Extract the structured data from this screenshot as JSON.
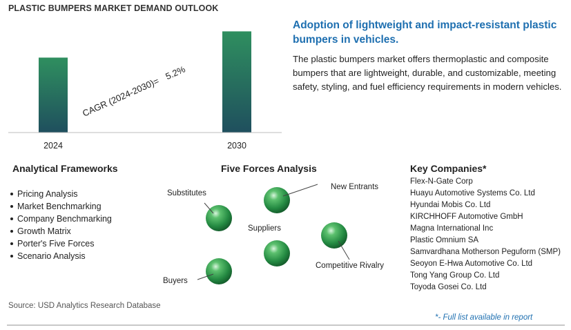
{
  "chart_data": {
    "type": "bar",
    "title": "PLASTIC BUMPERS MARKET DEMAND OUTLOOK",
    "categories": [
      "2024",
      "2030"
    ],
    "values": [
      1.0,
      1.35
    ],
    "annotation": "CAGR (2024-2030)=",
    "annotation_value": "5.2%",
    "ylim": [
      0,
      1.4
    ],
    "grid": false,
    "bar_gradient": [
      "#2f8f5f",
      "#1f4f5e"
    ]
  },
  "headline": "Adoption of lightweight and impact-resistant plastic bumpers in vehicles.",
  "description": "The plastic bumpers market offers thermoplastic and composite bumpers that are lightweight, durable, and customizable, meeting safety, styling, and fuel efficiency requirements in modern vehicles.",
  "frameworks": {
    "title": "Analytical Frameworks",
    "items": [
      "Pricing Analysis",
      "Market Benchmarking",
      "Company Benchmarking",
      "Growth Matrix",
      "Porter's Five Forces",
      "Scenario Analysis"
    ]
  },
  "five_forces": {
    "title": "Five Forces Analysis",
    "forces": [
      "Substitutes",
      "New Entrants",
      "Suppliers",
      "Competitive Rivalry",
      "Buyers"
    ],
    "sphere_color": "#2e9a4f"
  },
  "companies": {
    "title": "Key Companies*",
    "items": [
      "Flex-N-Gate Corp",
      "Huayu Automotive Systems Co. Ltd",
      "Hyundai Mobis Co. Ltd",
      "KIRCHHOFF Automotive GmbH",
      "Magna International Inc",
      "Plastic Omnium SA",
      "Samvardhana Motherson Peguform (SMP)",
      "Seoyon E-Hwa Automotive Co. Ltd",
      "Tong Yang Group Co. Ltd",
      "Toyoda Gosei Co. Ltd"
    ],
    "note": "*- Full list available in report"
  },
  "source": "Source: USD Analytics Research Database",
  "colors": {
    "accent": "#1e6fb0",
    "bar_top": "#2f8f5f",
    "bar_bottom": "#1f4f5e"
  }
}
